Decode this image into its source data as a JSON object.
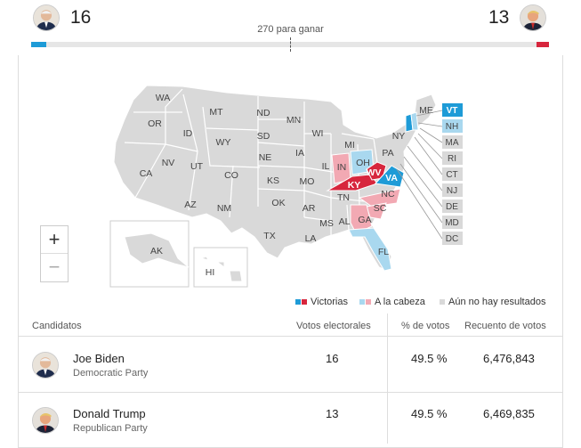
{
  "header": {
    "dem_score": "16",
    "rep_score": "13",
    "to_win": "270 para ganar",
    "dem_progress": 0.03,
    "rep_progress": 0.024
  },
  "map": {
    "state_labels": [
      "WA",
      "OR",
      "CA",
      "ID",
      "NV",
      "MT",
      "WY",
      "UT",
      "AZ",
      "CO",
      "NM",
      "ND",
      "SD",
      "NE",
      "KS",
      "OK",
      "TX",
      "MN",
      "IA",
      "MO",
      "AR",
      "LA",
      "WI",
      "IL",
      "MI",
      "IN",
      "OH",
      "KY",
      "TN",
      "MS",
      "AL",
      "GA",
      "FL",
      "SC",
      "NC",
      "VA",
      "WV",
      "PA",
      "NY",
      "ME",
      "AK",
      "HI"
    ],
    "small_state_labels": [
      "VT",
      "NH",
      "MA",
      "RI",
      "CT",
      "NJ",
      "DE",
      "MD",
      "DC"
    ],
    "won_dem": [
      "VT",
      "VA"
    ],
    "won_rep": [
      "KY",
      "WV"
    ],
    "lead_dem": [
      "OH",
      "FL",
      "NH"
    ],
    "lead_rep": [
      "IN",
      "NC",
      "SC",
      "GA"
    ],
    "colors": {
      "won_dem": "#1e9bd7",
      "won_rep": "#d7263d",
      "lead_dem": "#a9d8ef",
      "lead_rep": "#f2a9b3",
      "no_result": "#d9d9d9"
    }
  },
  "zoom": {
    "in": "+",
    "out": "−"
  },
  "legend": {
    "won": "Victorias",
    "leading": "A la cabeza",
    "no_results": "Aún no hay resultados"
  },
  "table": {
    "headers": {
      "candidates": "Candidatos",
      "electoral": "Votos electorales",
      "pct": "% de votos",
      "count": "Recuento de votos"
    },
    "rows": [
      {
        "name": "Joe Biden",
        "party": "Democratic Party",
        "electoral": "16",
        "pct": "49.5 %",
        "count": "6,476,843"
      },
      {
        "name": "Donald Trump",
        "party": "Republican Party",
        "electoral": "13",
        "pct": "49.5 %",
        "count": "6,469,835"
      }
    ]
  }
}
